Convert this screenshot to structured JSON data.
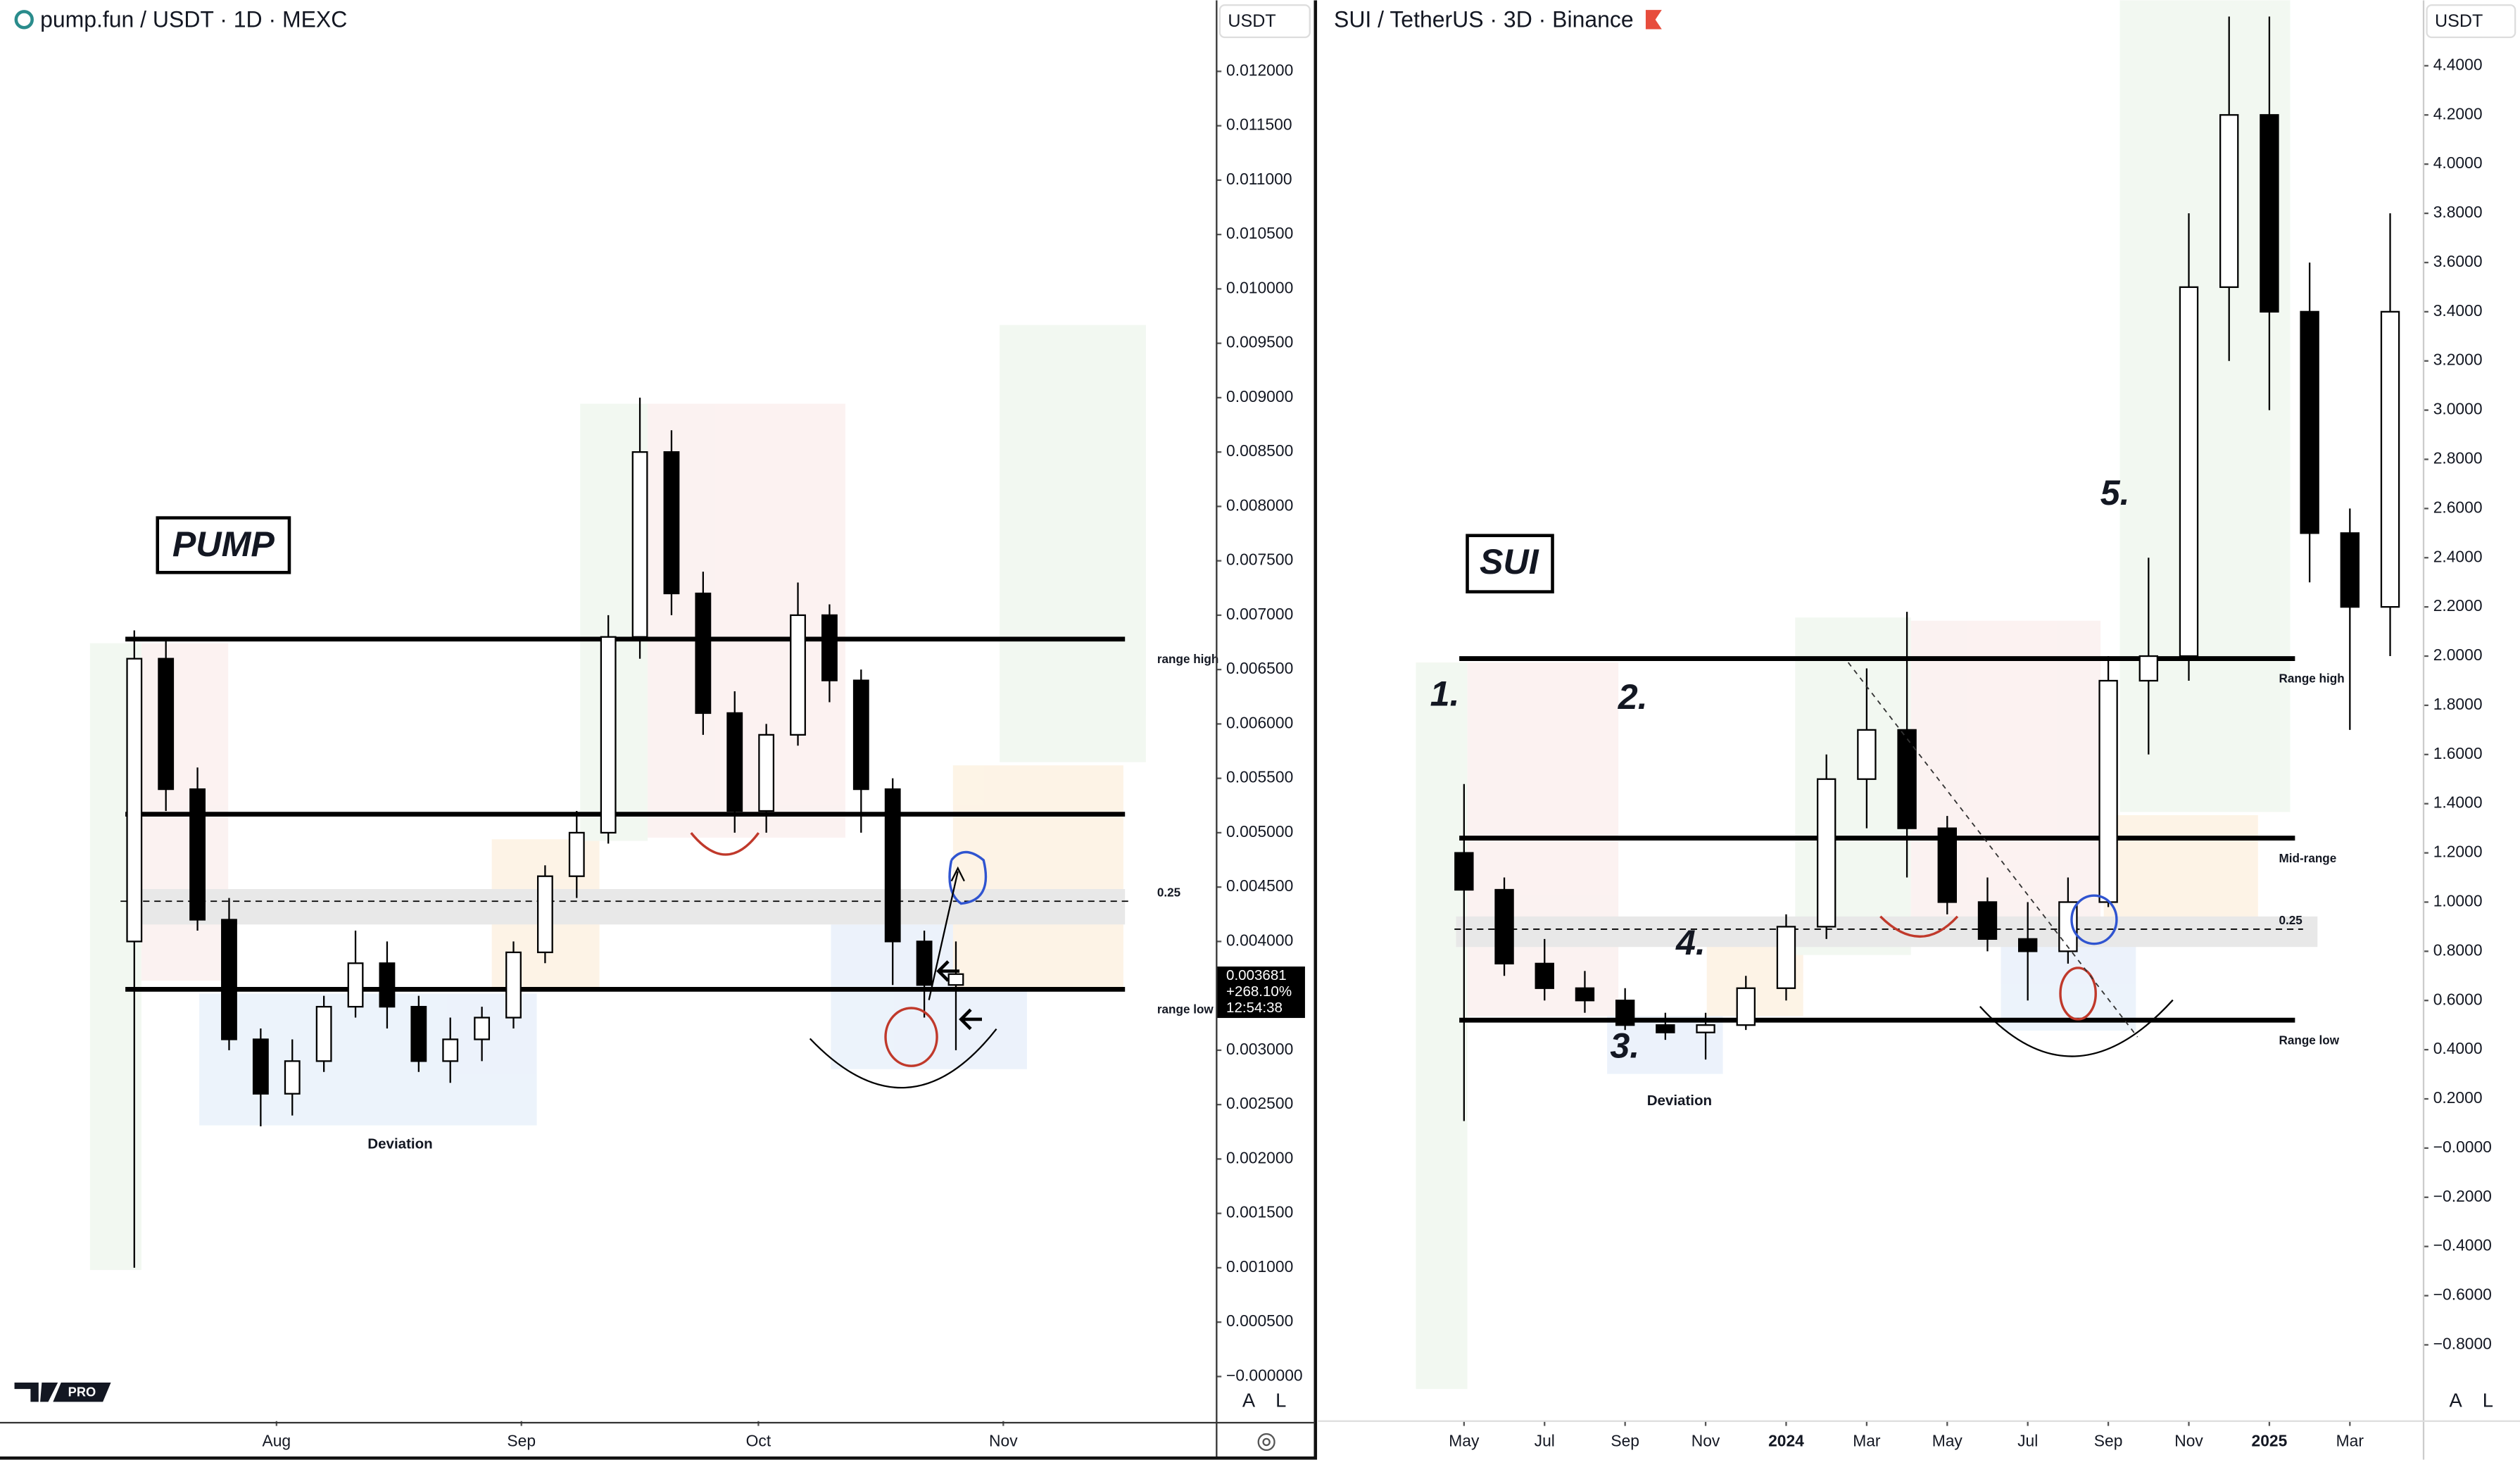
{
  "chart_data": [
    {
      "type": "candlestick",
      "title": "pump.fun / USDT · 1D · MEXC",
      "currency": "USDT",
      "logo": "PRO",
      "candles": {
        "x": [
          -18,
          -14,
          -10,
          -6,
          -2,
          2,
          6,
          10,
          14,
          18,
          22,
          26,
          30,
          34,
          38,
          42,
          46,
          50,
          54,
          58,
          62,
          66,
          70,
          74,
          78,
          82,
          86
        ],
        "open": [
          0.004,
          0.0066,
          0.0054,
          0.0042,
          0.0031,
          0.0026,
          0.0029,
          0.0034,
          0.0038,
          0.0034,
          0.0029,
          0.0031,
          0.0033,
          0.0039,
          0.0046,
          0.005,
          0.0068,
          0.0085,
          0.0072,
          0.0061,
          0.0052,
          0.0059,
          0.007,
          0.0064,
          0.0054,
          0.004,
          0.0036
        ],
        "high": [
          0.00686,
          0.0068,
          0.0056,
          0.0044,
          0.0032,
          0.0031,
          0.0035,
          0.0041,
          0.004,
          0.0035,
          0.0033,
          0.0034,
          0.004,
          0.0047,
          0.0052,
          0.007,
          0.009,
          0.0087,
          0.0074,
          0.0063,
          0.006,
          0.0073,
          0.0071,
          0.0065,
          0.0055,
          0.0041,
          0.004
        ],
        "low": [
          0.001,
          0.0052,
          0.0041,
          0.003,
          0.0023,
          0.0024,
          0.0028,
          0.0033,
          0.0032,
          0.0028,
          0.0027,
          0.0029,
          0.0032,
          0.0038,
          0.0044,
          0.0049,
          0.0066,
          0.007,
          0.0059,
          0.005,
          0.005,
          0.0058,
          0.0062,
          0.005,
          0.0036,
          0.0033,
          0.003
        ],
        "close": [
          0.0066,
          0.0054,
          0.0042,
          0.0031,
          0.0026,
          0.0029,
          0.0034,
          0.0038,
          0.0034,
          0.0029,
          0.0031,
          0.0033,
          0.0039,
          0.0046,
          0.005,
          0.0068,
          0.0085,
          0.0072,
          0.0061,
          0.0052,
          0.0059,
          0.007,
          0.0064,
          0.0054,
          0.004,
          0.0036,
          0.0037
        ]
      },
      "xlim": [
        -35,
        119
      ],
      "xticks": [
        {
          "value": 0,
          "label": "Aug"
        },
        {
          "value": 31,
          "label": "Sep"
        },
        {
          "value": 61,
          "label": "Oct"
        },
        {
          "value": 92,
          "label": "Nov"
        }
      ],
      "ylim": [
        -0.00041,
        0.01221
      ],
      "yticks": [
        {
          "value": 0.012,
          "label": "0.012000"
        },
        {
          "value": 0.0115,
          "label": "0.011500"
        },
        {
          "value": 0.011,
          "label": "0.011000"
        },
        {
          "value": 0.0105,
          "label": "0.010500"
        },
        {
          "value": 0.01,
          "label": "0.010000"
        },
        {
          "value": 0.0095,
          "label": "0.009500"
        },
        {
          "value": 0.009,
          "label": "0.009000"
        },
        {
          "value": 0.0085,
          "label": "0.008500"
        },
        {
          "value": 0.008,
          "label": "0.008000"
        },
        {
          "value": 0.0075,
          "label": "0.007500"
        },
        {
          "value": 0.007,
          "label": "0.007000"
        },
        {
          "value": 0.0065,
          "label": "0.006500"
        },
        {
          "value": 0.006,
          "label": "0.006000"
        },
        {
          "value": 0.0055,
          "label": "0.005500"
        },
        {
          "value": 0.005,
          "label": "0.005000"
        },
        {
          "value": 0.0045,
          "label": "0.004500"
        },
        {
          "value": 0.004,
          "label": "0.004000"
        },
        {
          "value": 0.0035,
          "label": "0.003500"
        },
        {
          "value": 0.003,
          "label": "0.003000"
        },
        {
          "value": 0.0025,
          "label": "0.002500"
        },
        {
          "value": 0.002,
          "label": "0.002000"
        },
        {
          "value": 0.0015,
          "label": "0.001500"
        },
        {
          "value": 0.001,
          "label": "0.001000"
        },
        {
          "value": 0.0005,
          "label": "0.000500"
        },
        {
          "value": 0,
          "label": "−0.000000"
        }
      ],
      "hlines": [
        {
          "value": 0.00678,
          "label": "range high"
        },
        {
          "value": 0.00517
        },
        {
          "value": 0.00437,
          "label": "0.25",
          "dashed": true
        },
        {
          "value": 0.00356,
          "label": "range low"
        }
      ],
      "last_price": 0.003681,
      "change": "+268.10%",
      "countdown": "12:54:38",
      "annotations": [
        "PUMP",
        "Deviation"
      ],
      "scale_buttons": [
        "A",
        "L"
      ]
    },
    {
      "type": "candlestick",
      "title": "SUI / TetherUS · 3D · Binance",
      "currency": "USDT",
      "candles": {
        "x": [
          4,
          5,
          6,
          7,
          8,
          9,
          10,
          11,
          12,
          13,
          14,
          15,
          16,
          17,
          18,
          19,
          20,
          21,
          22,
          23,
          24,
          25,
          26,
          27
        ],
        "open": [
          1.2,
          1.05,
          0.75,
          0.65,
          0.6,
          0.5,
          0.47,
          0.5,
          0.65,
          0.9,
          1.5,
          1.7,
          1.3,
          1.0,
          0.85,
          0.8,
          1.0,
          1.9,
          2.0,
          3.5,
          4.2,
          3.4,
          2.5,
          2.2
        ],
        "high": [
          1.48,
          1.1,
          0.85,
          0.72,
          0.65,
          0.55,
          0.55,
          0.7,
          0.95,
          1.6,
          1.95,
          2.18,
          1.35,
          1.1,
          1.0,
          1.1,
          2.0,
          2.4,
          3.8,
          4.6,
          4.6,
          3.6,
          2.6,
          3.8
        ],
        "low": [
          0.11,
          0.7,
          0.6,
          0.55,
          0.48,
          0.44,
          0.36,
          0.48,
          0.6,
          0.85,
          1.3,
          1.1,
          0.95,
          0.8,
          0.6,
          0.75,
          0.98,
          1.6,
          1.9,
          3.2,
          3.0,
          2.3,
          1.7,
          2.0
        ],
        "close": [
          1.05,
          0.75,
          0.65,
          0.6,
          0.5,
          0.47,
          0.5,
          0.65,
          0.9,
          1.5,
          1.7,
          1.3,
          1.0,
          0.85,
          0.8,
          1.0,
          1.9,
          2.0,
          3.5,
          4.2,
          3.4,
          2.5,
          2.2,
          3.4
        ]
      },
      "xlim": [
        0.37,
        27.83
      ],
      "xticks": [
        {
          "value": 4,
          "label": "May"
        },
        {
          "value": 6,
          "label": "Jul"
        },
        {
          "value": 8,
          "label": "Sep"
        },
        {
          "value": 10,
          "label": "Nov"
        },
        {
          "value": 12,
          "label": "2024"
        },
        {
          "value": 14,
          "label": "Mar"
        },
        {
          "value": 16,
          "label": "May"
        },
        {
          "value": 18,
          "label": "Jul"
        },
        {
          "value": 20,
          "label": "Sep"
        },
        {
          "value": 22,
          "label": "Nov"
        },
        {
          "value": 24,
          "label": "2025"
        },
        {
          "value": 26,
          "label": "Mar"
        }
      ],
      "ylim": [
        -1.11,
        4.47
      ],
      "yticks": [
        {
          "value": 4.4,
          "label": "4.4000"
        },
        {
          "value": 4.2,
          "label": "4.2000"
        },
        {
          "value": 4,
          "label": "4.0000"
        },
        {
          "value": 3.8,
          "label": "3.8000"
        },
        {
          "value": 3.6,
          "label": "3.6000"
        },
        {
          "value": 3.4,
          "label": "3.4000"
        },
        {
          "value": 3.2,
          "label": "3.2000"
        },
        {
          "value": 3,
          "label": "3.0000"
        },
        {
          "value": 2.8,
          "label": "2.8000"
        },
        {
          "value": 2.6,
          "label": "2.6000"
        },
        {
          "value": 2.4,
          "label": "2.4000"
        },
        {
          "value": 2.2,
          "label": "2.2000"
        },
        {
          "value": 2,
          "label": "2.0000"
        },
        {
          "value": 1.8,
          "label": "1.8000"
        },
        {
          "value": 1.6,
          "label": "1.6000"
        },
        {
          "value": 1.4,
          "label": "1.4000"
        },
        {
          "value": 1.2,
          "label": "1.2000"
        },
        {
          "value": 1,
          "label": "1.0000"
        },
        {
          "value": 0.8,
          "label": "0.8000"
        },
        {
          "value": 0.6,
          "label": "0.6000"
        },
        {
          "value": 0.4,
          "label": "0.4000"
        },
        {
          "value": 0.2,
          "label": "0.2000"
        },
        {
          "value": 0,
          "label": "−0.0000"
        },
        {
          "value": -0.2,
          "label": "−0.2000"
        },
        {
          "value": -0.4,
          "label": "−0.4000"
        },
        {
          "value": -0.6,
          "label": "−0.6000"
        },
        {
          "value": -0.8,
          "label": "−0.8000"
        }
      ],
      "hlines": [
        {
          "value": 1.99,
          "label": "Range high"
        },
        {
          "value": 1.26,
          "label": "Mid-range"
        },
        {
          "value": 0.89,
          "label": "0.25",
          "dashed": true
        },
        {
          "value": 0.52,
          "label": "Range low"
        }
      ],
      "annotations": [
        "SUI",
        "1.",
        "2.",
        "3.",
        "4.",
        "5.",
        "Deviation"
      ],
      "scale_buttons": [
        "A",
        "L"
      ]
    }
  ]
}
